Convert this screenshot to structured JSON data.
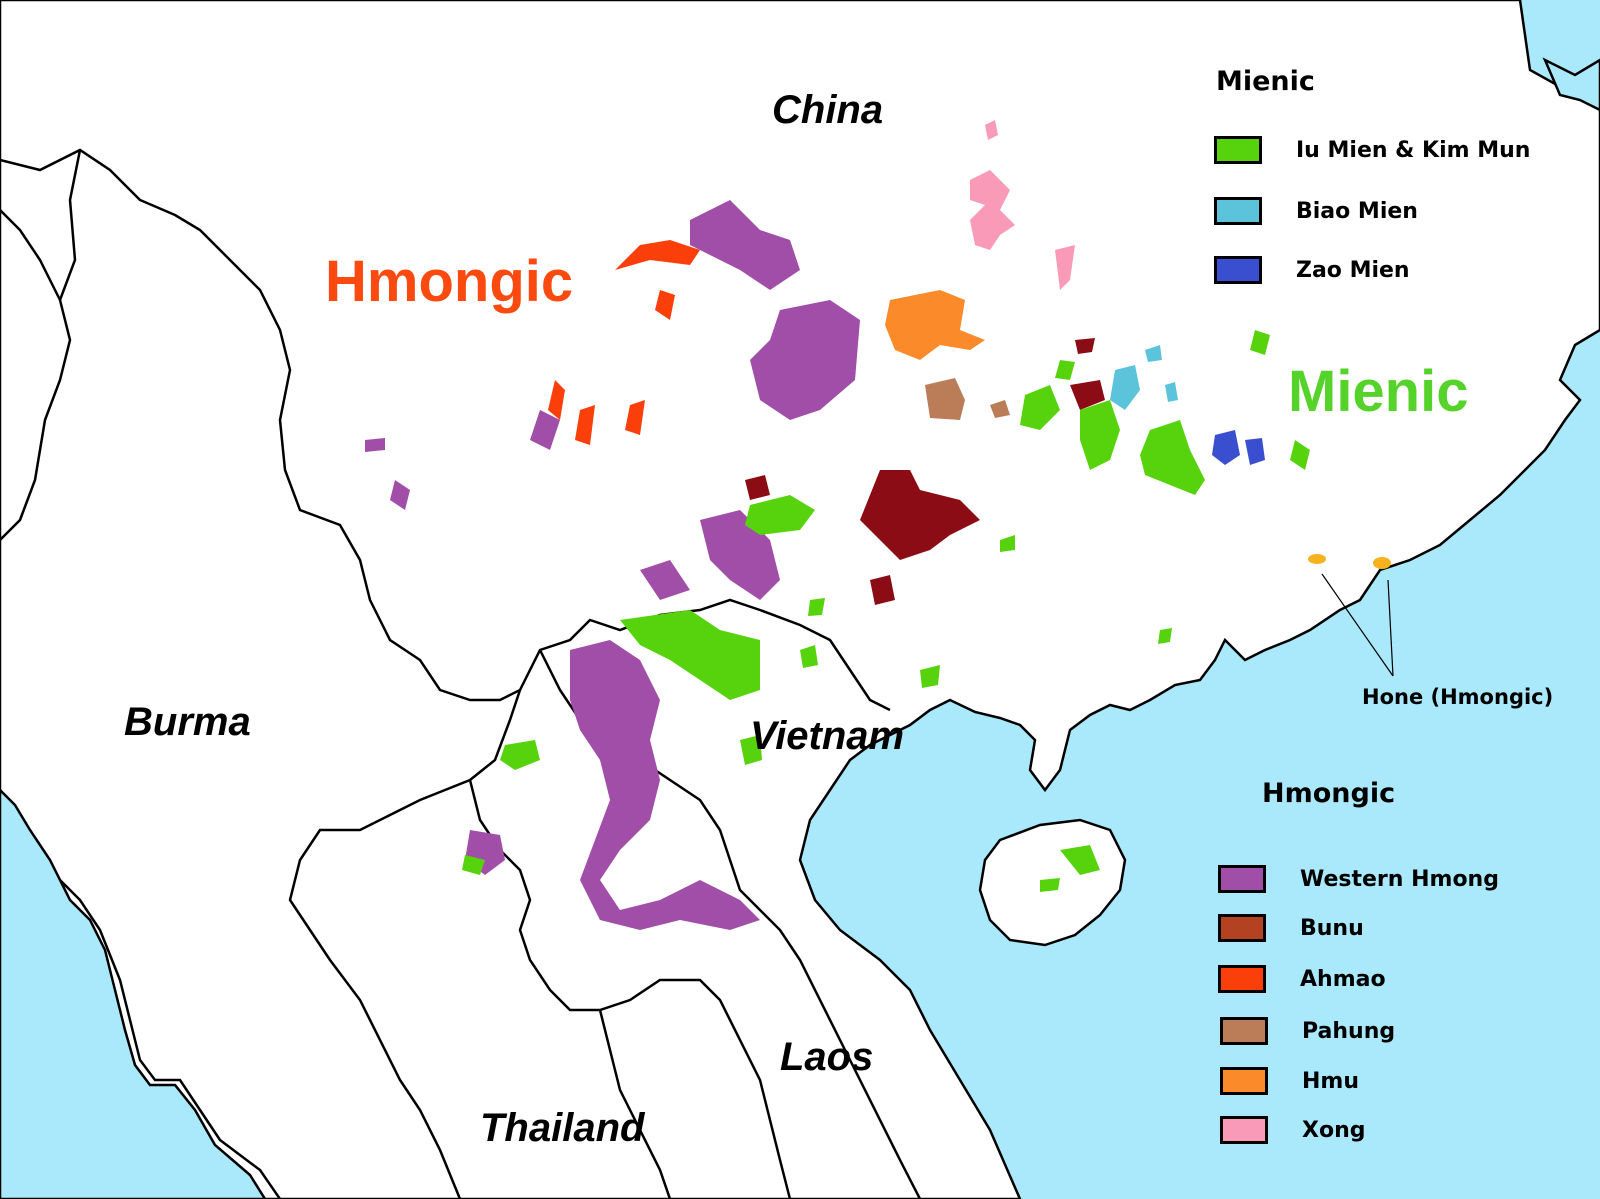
{
  "map": {
    "colors": {
      "sea": "#a9e9fb",
      "land": "#ffffff",
      "border": "#000000"
    },
    "country_labels": {
      "china": "China",
      "burma": "Burma",
      "vietnam": "Vietnam",
      "laos": "Laos",
      "thailand": "Thailand"
    },
    "group_labels": {
      "hmongic": {
        "text": "Hmongic",
        "color": "#fb4a10"
      },
      "mienic": {
        "text": "Mienic",
        "color": "#56d32a"
      }
    },
    "note_label": "Hone (Hmongic)"
  },
  "legend": {
    "mienic": {
      "title": "Mienic",
      "items": [
        {
          "label": "Iu Mien & Kim Mun",
          "color": "#56d30c"
        },
        {
          "label": "Biao Mien",
          "color": "#5bc4da"
        },
        {
          "label": "Zao Mien",
          "color": "#3a4fd0"
        }
      ]
    },
    "hmongic": {
      "title": "Hmongic",
      "items": [
        {
          "label": "Western Hmong",
          "color": "#a14ea8"
        },
        {
          "label": "Bunu",
          "color": "#b34223"
        },
        {
          "label": "Ahmao",
          "color": "#fb3f0a"
        },
        {
          "label": "Pahung",
          "color": "#bb7c58"
        },
        {
          "label": "Hmu",
          "color": "#fb8a2a"
        },
        {
          "label": "Xong",
          "color": "#f89ab8"
        }
      ]
    }
  },
  "region_colors": {
    "dark_red": "#8b0c14",
    "hone": "#f7b31f"
  }
}
